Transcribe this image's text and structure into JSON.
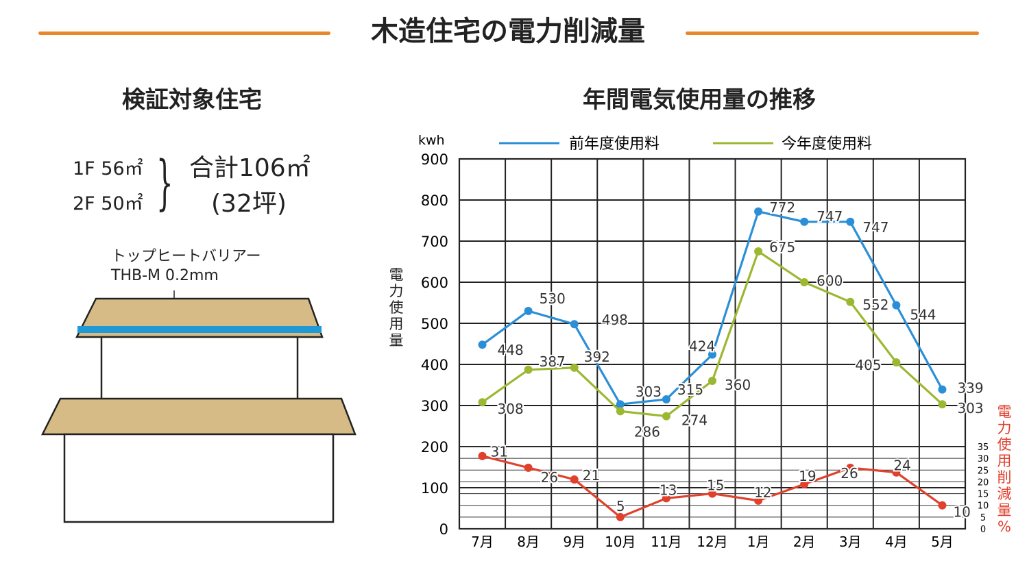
{
  "page_title": "木造住宅の電力削減量",
  "left": {
    "title": "検証対象住宅",
    "floor1": "1F 56㎡",
    "floor2": "2F 50㎡",
    "total": "合計106㎡",
    "tsubo": "(32坪)",
    "material_line1": "トップヒートバリアー",
    "material_line2": "THB-M 0.2mm"
  },
  "colors": {
    "title_rule": "#e8862a",
    "prev_year": "#2b8fd8",
    "this_year": "#9cb832",
    "reduction": "#e0402c",
    "roof": "#d7bb86",
    "barrier": "#1f9ad6"
  },
  "chart_data": {
    "type": "line",
    "title": "年間電気使用量の推移",
    "unit": "kwh",
    "ylabel": "電力使用量",
    "y2label": "電力使用削減量%",
    "categories": [
      "7月",
      "8月",
      "9月",
      "10月",
      "11月",
      "12月",
      "1月",
      "2月",
      "3月",
      "4月",
      "5月"
    ],
    "ylim": [
      0,
      900
    ],
    "yticks": [
      0,
      100,
      200,
      300,
      400,
      500,
      600,
      700,
      800,
      900
    ],
    "y2lim": [
      0,
      35
    ],
    "y2ticks": [
      0,
      5,
      10,
      15,
      20,
      25,
      30,
      35
    ],
    "grid": true,
    "legend_position": "top",
    "series": [
      {
        "name": "前年度使用料",
        "axis": "left",
        "values": [
          448,
          530,
          498,
          303,
          315,
          424,
          772,
          747,
          747,
          544,
          339
        ],
        "labels": [
          "448",
          "530",
          "498",
          "303",
          "315",
          "424",
          "772",
          "747",
          "747",
          "544",
          "339"
        ]
      },
      {
        "name": "今年度使用料",
        "axis": "left",
        "values": [
          308,
          387,
          392,
          286,
          274,
          360,
          675,
          600,
          552,
          405,
          303
        ],
        "labels": [
          "308",
          "387",
          "392",
          "286",
          "274",
          "360",
          "675",
          "600",
          "552",
          "405",
          "303"
        ]
      },
      {
        "name": "",
        "axis": "right",
        "values": [
          31,
          26,
          21,
          5,
          13,
          15,
          12,
          19,
          26,
          24,
          10
        ],
        "labels": [
          "31",
          "26",
          "21",
          "5",
          "13",
          "15",
          "12",
          "19",
          "26",
          "24",
          "10"
        ]
      }
    ]
  }
}
